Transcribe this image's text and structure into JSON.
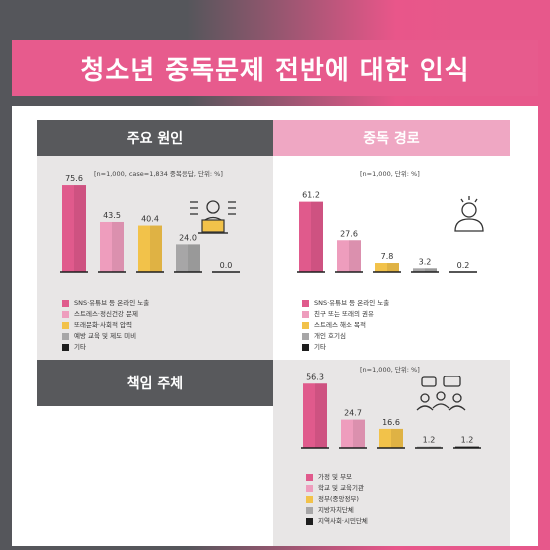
{
  "page_title": "청소년 중독문제 전반에 대한 인식",
  "colors": [
    "#e05a8c",
    "#ee9dbd",
    "#f2c24a",
    "#a7a6a7",
    "#1e1e1e"
  ],
  "chart_data": [
    {
      "type": "bar",
      "title": "주요 원인",
      "note": "[n=1,000, case=1,834 중복응답, 단위: %]",
      "categories": [
        "SNS·유튜브 등 온라인 노출",
        "스트레스·정신건강 문제",
        "또래문화·사회적 압력",
        "예방 교육 및 제도 미비",
        "기타"
      ],
      "values": [
        75.6,
        43.5,
        40.4,
        24.0,
        0.0
      ],
      "value_labels": [
        "75.6",
        "43.5",
        "40.4",
        "24.0",
        "0.0"
      ],
      "ylim": [
        0,
        80
      ]
    },
    {
      "type": "bar",
      "title": "중독 경로",
      "note": "[n=1,000, 단위: %]",
      "categories": [
        "SNS·유튜브 등 온라인 노출",
        "친구 또는 또래의 권유",
        "스트레스 해소 목적",
        "개인 호기심",
        "기타"
      ],
      "values": [
        61.2,
        27.6,
        7.8,
        3.2,
        0.2
      ],
      "value_labels": [
        "61.2",
        "27.6",
        "7.8",
        "3.2",
        "0.2"
      ],
      "ylim": [
        0,
        80
      ]
    },
    {
      "type": "bar",
      "title": "책임 주체",
      "note": "[n=1,000, 단위: %]",
      "categories": [
        "가정 및 부모",
        "학교 및 교육기관",
        "정부(중앙정부)",
        "지방자치단체",
        "지역사회·시민단체"
      ],
      "values": [
        56.3,
        24.7,
        16.6,
        1.2,
        1.2
      ],
      "value_labels": [
        "56.3",
        "24.7",
        "16.6",
        "1.2",
        "1.2"
      ],
      "ylim": [
        0,
        80
      ]
    }
  ]
}
